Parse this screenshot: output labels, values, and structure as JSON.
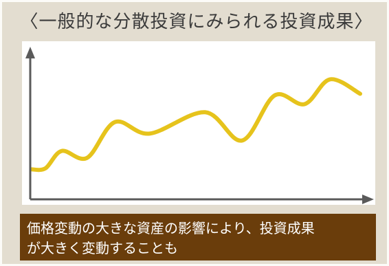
{
  "title": "〈一般的な分散投資にみられる投資成果〉",
  "caption": {
    "line1": "価格変動の大きな資産の影響により、投資成果",
    "line2": "が大きく変動することも"
  },
  "colors": {
    "background": "#e3ddd0",
    "line": "#e6c31c",
    "axis": "#5a5a5a",
    "caption_bg": "#6a3d0b"
  },
  "chart_data": {
    "type": "line",
    "title": "〈一般的な分散投資にみられる投資成果〉",
    "xlabel": "",
    "ylabel": "",
    "grid": false,
    "legend": "none",
    "x": [
      0,
      6,
      13,
      24,
      36,
      51,
      75,
      91,
      105,
      118,
      129,
      142
    ],
    "series": [
      {
        "values": [
          0.9,
          1.1,
          4.1,
          2.9,
          9.1,
          7.1,
          10.8,
          5.9,
          13.7,
          12.2,
          16.5,
          14.0
        ]
      }
    ],
    "xlim": [
      0,
      142
    ],
    "ylim": [
      0,
      20
    ]
  }
}
